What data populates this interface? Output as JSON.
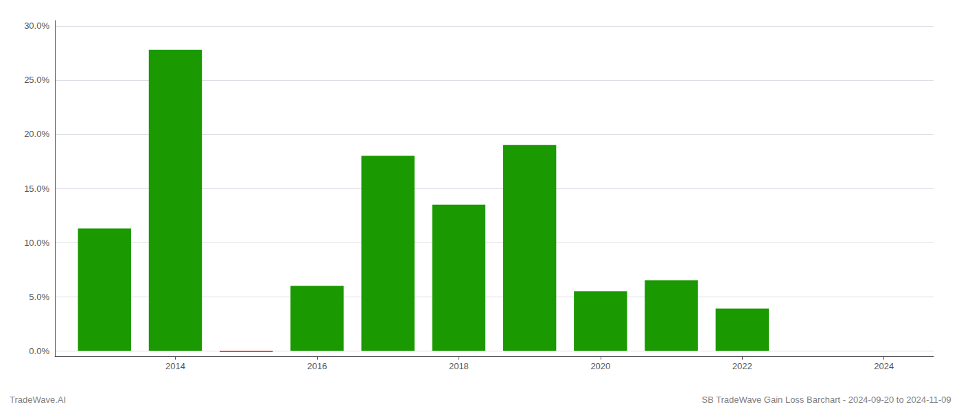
{
  "chart_data": {
    "type": "bar",
    "x": [
      2013,
      2014,
      2015,
      2016,
      2017,
      2018,
      2019,
      2020,
      2021,
      2022,
      2023
    ],
    "values": [
      0.113,
      0.278,
      -0.001,
      0.06,
      0.18,
      0.135,
      0.19,
      0.055,
      0.065,
      0.039,
      0.0
    ],
    "colors": [
      "#1a9900",
      "#1a9900",
      "#ff2200",
      "#1a9900",
      "#1a9900",
      "#1a9900",
      "#1a9900",
      "#1a9900",
      "#1a9900",
      "#1a9900",
      "#1a9900"
    ],
    "xlim": [
      2012.3,
      2024.7
    ],
    "xticks": [
      2014,
      2016,
      2018,
      2020,
      2022,
      2024
    ],
    "ylim": [
      -0.005,
      0.305
    ],
    "yticks": [
      {
        "value": 0.0,
        "label": "0.0%"
      },
      {
        "value": 0.05,
        "label": "5.0%"
      },
      {
        "value": 0.1,
        "label": "10.0%"
      },
      {
        "value": 0.15,
        "label": "15.0%"
      },
      {
        "value": 0.2,
        "label": "20.0%"
      },
      {
        "value": 0.25,
        "label": "25.0%"
      },
      {
        "value": 0.3,
        "label": "30.0%"
      }
    ],
    "grid": true,
    "annotations": [
      "TradeWave.AI",
      "SB TradeWave Gain Loss Barchart - 2024-09-20 to 2024-11-09"
    ]
  }
}
